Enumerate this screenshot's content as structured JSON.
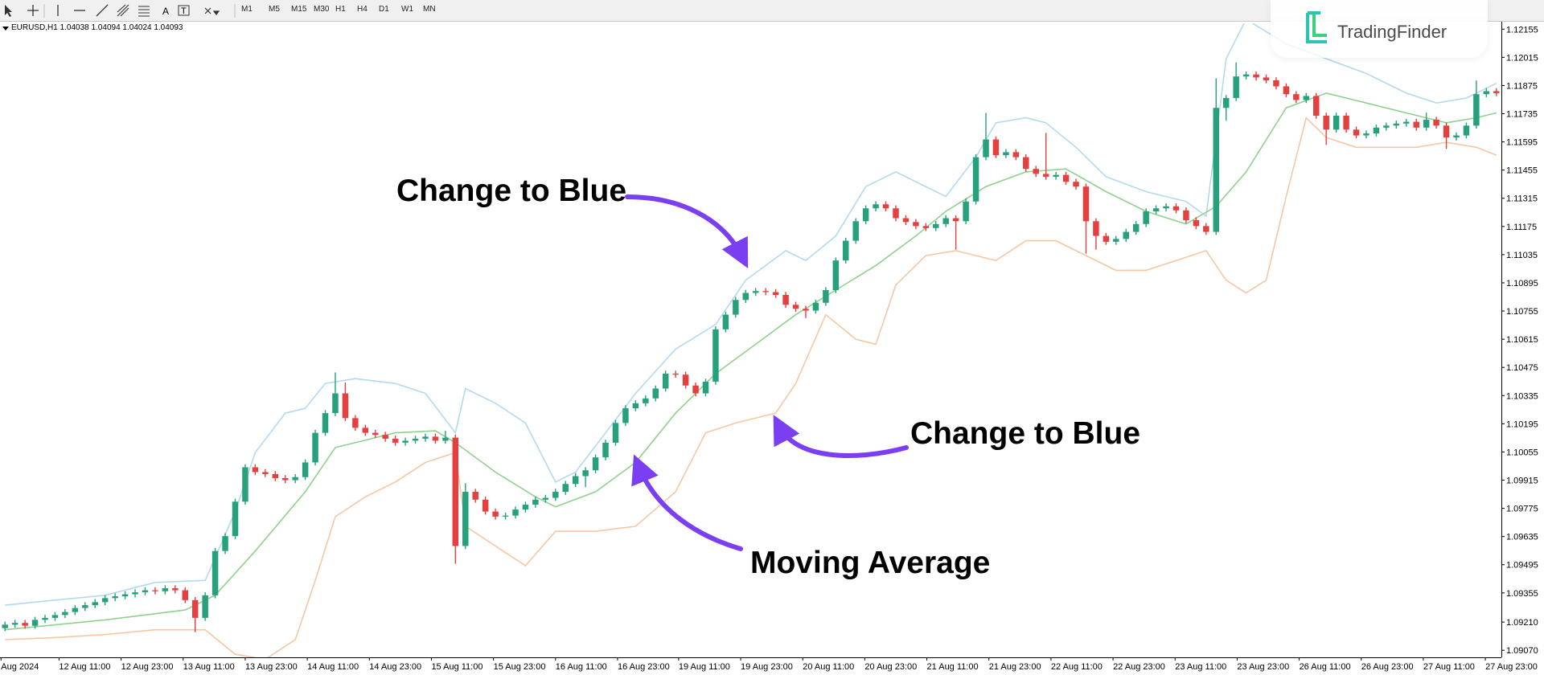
{
  "toolbar": {
    "tools": [
      "A",
      "T"
    ],
    "timeframes": [
      "M1",
      "M5",
      "M15",
      "M30",
      "H1",
      "H4",
      "D1",
      "W1",
      "MN"
    ]
  },
  "logo": "TradingFinder",
  "chart_data": {
    "type": "candlestick",
    "info": "EURUSD,H1  1.04038 1.04094 1.04024 1.04093",
    "up_color": "#26a17b",
    "down_color": "#e5403f",
    "xlim": [
      -0.5,
      149.5
    ],
    "ylim": [
      1.09035,
      1.12184
    ],
    "yticks": [
      1.12155,
      1.12015,
      1.11875,
      1.11735,
      1.11595,
      1.11455,
      1.11315,
      1.11175,
      1.11035,
      1.10895,
      1.10755,
      1.10615,
      1.10475,
      1.10335,
      1.10195,
      1.10055,
      1.09915,
      1.09775,
      1.09635,
      1.09495,
      1.09355,
      {
        "value": 1.0921,
        "label": "1.09210"
      },
      {
        "value": 1.0907,
        "label": "1.09070"
      }
    ],
    "xticks": [
      {
        "value": -0.4,
        "label": "Aug 2024"
      },
      {
        "value": 5.4,
        "label": "12 Aug 11:00"
      },
      {
        "value": 11.6,
        "label": "12 Aug 23:00"
      },
      {
        "value": 17.8,
        "label": "13 Aug 11:00"
      },
      {
        "value": 24.0,
        "label": "13 Aug 23:00"
      },
      {
        "value": 30.2,
        "label": "14 Aug 11:00"
      },
      {
        "value": 36.4,
        "label": "14 Aug 23:00"
      },
      {
        "value": 42.6,
        "label": "15 Aug 11:00"
      },
      {
        "value": 48.8,
        "label": "15 Aug 23:00"
      },
      {
        "value": 55.0,
        "label": "16 Aug 11:00"
      },
      {
        "value": 61.2,
        "label": "16 Aug 23:00"
      },
      {
        "value": 67.3,
        "label": "19 Aug 11:00"
      },
      {
        "value": 73.5,
        "label": "19 Aug 23:00"
      },
      {
        "value": 79.7,
        "label": "20 Aug 11:00"
      },
      {
        "value": 85.9,
        "label": "20 Aug 23:00"
      },
      {
        "value": 92.1,
        "label": "21 Aug 11:00"
      },
      {
        "value": 98.3,
        "label": "21 Aug 23:00"
      },
      {
        "value": 104.5,
        "label": "22 Aug 11:00"
      },
      {
        "value": 110.7,
        "label": "22 Aug 23:00"
      },
      {
        "value": 116.9,
        "label": "23 Aug 11:00"
      },
      {
        "value": 123.1,
        "label": "23 Aug 23:00"
      },
      {
        "value": 129.3,
        "label": "26 Aug 11:00"
      },
      {
        "value": 135.5,
        "label": "26 Aug 23:00"
      },
      {
        "value": 141.7,
        "label": "27 Aug 11:00"
      },
      {
        "value": 147.9,
        "label": "27 Aug 23:00"
      }
    ],
    "candles": {
      "open": [
        1.0918,
        1.09197,
        1.09206,
        1.09192,
        1.09221,
        1.09231,
        1.09245,
        1.0926,
        1.0928,
        1.09294,
        1.09309,
        1.09329,
        1.09338,
        1.09348,
        1.09358,
        1.09368,
        1.09363,
        1.09378,
        1.09368,
        1.09319,
        1.09231,
        1.09343,
        1.09563,
        1.09637,
        1.09808,
        1.09979,
        1.09955,
        1.09945,
        1.09925,
        1.09915,
        1.0993,
        1.10003,
        1.1015,
        1.10248,
        1.10346,
        1.10223,
        1.10175,
        1.1015,
        1.1014,
        1.10121,
        1.10101,
        1.10111,
        1.10121,
        1.10131,
        1.10111,
        1.10126,
        1.09588,
        1.09857,
        1.09818,
        1.09759,
        1.09734,
        1.09739,
        1.09769,
        1.09793,
        1.09818,
        1.09827,
        1.09857,
        1.09896,
        1.09935,
        1.09964,
        1.10028,
        1.10101,
        1.10199,
        1.10272,
        1.10297,
        1.10321,
        1.1037,
        1.10444,
        1.10439,
        1.10385,
        1.10346,
        1.10404,
        1.10664,
        1.10737,
        1.1081,
        1.10845,
        1.10854,
        1.10849,
        1.10835,
        1.10786,
        1.10766,
        1.10757,
        1.10796,
        1.10859,
        1.11006,
        1.11104,
        1.11201,
        1.11265,
        1.11285,
        1.11265,
        1.11216,
        1.11197,
        1.11177,
        1.11167,
        1.11187,
        1.11216,
        1.11201,
        1.11299,
        1.11519,
        1.11607,
        1.11529,
        1.11544,
        1.11519,
        1.11461,
        1.11436,
        1.11422,
        1.11431,
        1.11397,
        1.11373,
        1.11201,
        1.11128,
        1.11099,
        1.11113,
        1.11148,
        1.11187,
        1.1125,
        1.11265,
        1.11275,
        1.11255,
        1.11206,
        1.11177,
        1.11148,
        1.11764,
        1.11813,
        1.1192,
        1.1193,
        1.11915,
        1.11901,
        1.11871,
        1.11832,
        1.11803,
        1.11823,
        1.11725,
        1.11656,
        1.11725,
        1.11656,
        1.11627,
        1.11637,
        1.11666,
        1.11676,
        1.11686,
        1.11695,
        1.11666,
        1.11705,
        1.11676,
        1.11617,
        1.11627,
        1.11676,
        1.11832,
        1.11847
      ],
      "high": [
        1.09212,
        1.09221,
        1.09221,
        1.09236,
        1.09246,
        1.0926,
        1.09275,
        1.09295,
        1.09309,
        1.09324,
        1.09344,
        1.09353,
        1.09363,
        1.09373,
        1.09383,
        1.09383,
        1.09393,
        1.09393,
        1.09383,
        1.09334,
        1.09358,
        1.09578,
        1.09652,
        1.09823,
        1.09994,
        1.09994,
        1.0997,
        1.0996,
        1.0994,
        1.09945,
        1.10018,
        1.10165,
        1.10263,
        1.1045,
        1.104,
        1.10238,
        1.1019,
        1.10165,
        1.10155,
        1.10136,
        1.10126,
        1.10136,
        1.10146,
        1.10146,
        1.1016,
        1.10141,
        1.099,
        1.09872,
        1.09833,
        1.09774,
        1.09754,
        1.09784,
        1.09808,
        1.09833,
        1.09842,
        1.09872,
        1.09911,
        1.0995,
        1.09979,
        1.10043,
        1.10116,
        1.10214,
        1.10287,
        1.10312,
        1.10336,
        1.10385,
        1.10459,
        1.10459,
        1.10454,
        1.104,
        1.10419,
        1.10679,
        1.10752,
        1.10825,
        1.1086,
        1.10869,
        1.10869,
        1.10864,
        1.1085,
        1.10801,
        1.10781,
        1.10811,
        1.10874,
        1.11021,
        1.11119,
        1.11216,
        1.1128,
        1.113,
        1.113,
        1.1128,
        1.11231,
        1.11212,
        1.11192,
        1.11202,
        1.11231,
        1.11231,
        1.11314,
        1.11534,
        1.11739,
        1.11622,
        1.11559,
        1.11559,
        1.11534,
        1.11476,
        1.1164,
        1.11446,
        1.11446,
        1.11412,
        1.11388,
        1.11216,
        1.11143,
        1.11128,
        1.11163,
        1.11202,
        1.11265,
        1.1128,
        1.1129,
        1.1129,
        1.1127,
        1.11221,
        1.11192,
        1.11911,
        1.11828,
        1.1199,
        1.11945,
        1.11945,
        1.1193,
        1.11916,
        1.11886,
        1.11847,
        1.11838,
        1.11838,
        1.1174,
        1.1174,
        1.1174,
        1.11671,
        1.11652,
        1.11681,
        1.11691,
        1.11701,
        1.1171,
        1.1171,
        1.1174,
        1.1172,
        1.11691,
        1.11642,
        1.11691,
        1.119,
        1.11862,
        1.11862
      ],
      "low": [
        1.09165,
        1.09182,
        1.09177,
        1.09177,
        1.09206,
        1.09216,
        1.0923,
        1.09245,
        1.09265,
        1.09279,
        1.09294,
        1.09314,
        1.09323,
        1.09333,
        1.09343,
        1.09348,
        1.09348,
        1.09353,
        1.09304,
        1.0916,
        1.09216,
        1.09328,
        1.09548,
        1.09622,
        1.09793,
        1.0994,
        1.0993,
        1.0991,
        1.099,
        1.099,
        1.09915,
        1.09988,
        1.10135,
        1.10233,
        1.10208,
        1.1016,
        1.10135,
        1.10125,
        1.10106,
        1.10086,
        1.10086,
        1.10096,
        1.10106,
        1.10096,
        1.10096,
        1.095,
        1.09573,
        1.09803,
        1.09744,
        1.09719,
        1.09719,
        1.09724,
        1.09754,
        1.09778,
        1.09803,
        1.09812,
        1.09842,
        1.09881,
        1.0988,
        1.09949,
        1.10013,
        1.10086,
        1.10184,
        1.10257,
        1.10282,
        1.10306,
        1.10355,
        1.10424,
        1.1037,
        1.10331,
        1.10331,
        1.10389,
        1.10649,
        1.10722,
        1.10795,
        1.1083,
        1.10834,
        1.1082,
        1.10771,
        1.10751,
        1.1072,
        1.10742,
        1.10781,
        1.10844,
        1.10991,
        1.11089,
        1.11186,
        1.1125,
        1.1125,
        1.11201,
        1.11182,
        1.11162,
        1.11152,
        1.11152,
        1.11172,
        1.1106,
        1.11186,
        1.11284,
        1.11504,
        1.11514,
        1.11514,
        1.11504,
        1.11446,
        1.11421,
        1.11407,
        1.11407,
        1.11382,
        1.11358,
        1.1104,
        1.1106,
        1.11084,
        1.11084,
        1.11098,
        1.11133,
        1.11172,
        1.11235,
        1.1125,
        1.1124,
        1.11191,
        1.11162,
        1.11133,
        1.11133,
        1.117,
        1.11798,
        1.11905,
        1.119,
        1.11886,
        1.11856,
        1.11817,
        1.11788,
        1.11788,
        1.1171,
        1.1158,
        1.11641,
        1.11641,
        1.11612,
        1.11612,
        1.11622,
        1.11651,
        1.11661,
        1.11671,
        1.11651,
        1.11651,
        1.11661,
        1.1156,
        1.11602,
        1.11612,
        1.11661,
        1.11817,
        1.11822
      ],
      "close": [
        1.09197,
        1.09206,
        1.09192,
        1.09221,
        1.09231,
        1.09245,
        1.0926,
        1.0928,
        1.09294,
        1.09309,
        1.09329,
        1.09338,
        1.09348,
        1.09358,
        1.09368,
        1.09363,
        1.09378,
        1.09368,
        1.09319,
        1.09231,
        1.09343,
        1.09563,
        1.09637,
        1.09808,
        1.09979,
        1.09955,
        1.09945,
        1.09925,
        1.09915,
        1.0993,
        1.10003,
        1.1015,
        1.10248,
        1.10346,
        1.10223,
        1.10175,
        1.1015,
        1.1014,
        1.10121,
        1.10101,
        1.10111,
        1.10121,
        1.10131,
        1.10111,
        1.10126,
        1.09588,
        1.09857,
        1.09818,
        1.09759,
        1.09734,
        1.09739,
        1.09769,
        1.09793,
        1.09818,
        1.09827,
        1.09857,
        1.09896,
        1.09935,
        1.09964,
        1.10028,
        1.10101,
        1.10199,
        1.10272,
        1.10297,
        1.10321,
        1.1037,
        1.10444,
        1.10439,
        1.10385,
        1.10346,
        1.10404,
        1.10664,
        1.10737,
        1.1081,
        1.10845,
        1.10854,
        1.10849,
        1.10835,
        1.10786,
        1.10766,
        1.10757,
        1.10796,
        1.10859,
        1.11006,
        1.11104,
        1.11201,
        1.11265,
        1.11285,
        1.11265,
        1.11216,
        1.11197,
        1.11177,
        1.11167,
        1.11187,
        1.11216,
        1.11201,
        1.11299,
        1.11519,
        1.11607,
        1.11529,
        1.11544,
        1.11519,
        1.11461,
        1.11436,
        1.11422,
        1.11431,
        1.11397,
        1.11373,
        1.11201,
        1.11128,
        1.11099,
        1.11113,
        1.11148,
        1.11187,
        1.1125,
        1.11265,
        1.11275,
        1.11255,
        1.11206,
        1.11177,
        1.11148,
        1.11764,
        1.11813,
        1.1192,
        1.1193,
        1.11915,
        1.11901,
        1.11871,
        1.11832,
        1.11803,
        1.11823,
        1.11725,
        1.11656,
        1.11725,
        1.11656,
        1.11627,
        1.11637,
        1.11666,
        1.11676,
        1.11686,
        1.11695,
        1.11666,
        1.11705,
        1.11676,
        1.11617,
        1.11627,
        1.11676,
        1.11832,
        1.11847,
        1.11837
      ]
    },
    "overlays": [
      {
        "color": "#b3d9f2",
        "x": [
          0,
          5,
          10,
          15,
          20,
          23,
          25,
          28,
          30,
          32,
          35,
          39,
          42,
          45,
          46,
          49,
          52,
          55,
          57,
          60,
          63,
          67,
          71,
          74,
          78,
          80,
          83,
          86,
          89,
          91,
          94,
          97,
          99,
          102,
          104,
          107,
          110,
          114,
          118,
          120,
          122,
          124,
          128,
          132,
          136,
          140,
          143,
          146,
          149
        ],
        "values": [
          1.09294,
          1.09319,
          1.09343,
          1.09407,
          1.09417,
          1.09759,
          1.10052,
          1.10248,
          1.10272,
          1.10395,
          1.10419,
          1.10395,
          1.10346,
          1.1015,
          1.1037,
          1.10297,
          1.10199,
          1.09906,
          1.09955,
          1.1015,
          1.10346,
          1.10566,
          1.10688,
          1.10908,
          1.11055,
          1.11006,
          1.11128,
          1.11373,
          1.11446,
          1.11397,
          1.11324,
          1.11519,
          1.1169,
          1.11715,
          1.1169,
          1.11568,
          1.11422,
          1.11348,
          1.11299,
          1.11226,
          1.12008,
          1.12204,
          1.12082,
          1.12008,
          1.11935,
          1.11837,
          1.11788,
          1.11813,
          1.11886
        ]
      },
      {
        "color": "#f7c6a3",
        "x": [
          0,
          5,
          10,
          15,
          20,
          23,
          26,
          29,
          31,
          33,
          36,
          39,
          42,
          45,
          46,
          49,
          52,
          55,
          59,
          63,
          67,
          70,
          73,
          77,
          79,
          82,
          85,
          87,
          89,
          92,
          95,
          97,
          99,
          102,
          105,
          108,
          111,
          114,
          117,
          120,
          122,
          124,
          126,
          128,
          130,
          132,
          135,
          138,
          141,
          144,
          147,
          149
        ],
        "values": [
          1.09123,
          1.09133,
          1.09148,
          1.09172,
          1.09172,
          1.0905,
          1.09025,
          1.09123,
          1.09417,
          1.09734,
          1.09832,
          1.09906,
          1.10003,
          1.10052,
          1.09686,
          1.09588,
          1.0949,
          1.09661,
          1.09661,
          1.09686,
          1.09857,
          1.1015,
          1.10199,
          1.10248,
          1.10395,
          1.10737,
          1.10615,
          1.1059,
          1.10884,
          1.1103,
          1.11055,
          1.1103,
          1.11006,
          1.11104,
          1.11104,
          1.1103,
          1.10957,
          1.10957,
          1.11006,
          1.11055,
          1.10908,
          1.10845,
          1.10908,
          1.11324,
          1.11715,
          1.11617,
          1.11568,
          1.11568,
          1.11568,
          1.11593,
          1.11568,
          1.11529
        ]
      },
      {
        "color": "#8fd18f",
        "x": [
          0,
          10,
          18,
          21,
          25,
          30,
          33,
          39,
          43,
          45,
          49,
          53,
          55,
          59,
          63,
          67,
          71,
          75,
          79,
          83,
          87,
          91,
          94,
          98,
          102,
          106,
          110,
          114,
          118,
          121,
          124,
          128,
          132,
          136,
          140,
          144,
          147,
          149
        ],
        "values": [
          1.09172,
          1.09221,
          1.0927,
          1.09343,
          1.09563,
          1.09857,
          1.10077,
          1.1015,
          1.1016,
          1.10101,
          1.09955,
          1.09832,
          1.09783,
          1.09857,
          1.10003,
          1.10248,
          1.10444,
          1.1059,
          1.10737,
          1.10859,
          1.10981,
          1.11128,
          1.1125,
          1.11373,
          1.11446,
          1.11461,
          1.11348,
          1.1125,
          1.11187,
          1.11275,
          1.11446,
          1.11764,
          1.11837,
          1.11788,
          1.11739,
          1.1169,
          1.11715,
          1.11739
        ]
      }
    ],
    "annotations": [
      {
        "text": "Change to Blue"
      },
      {
        "text": "Change to Blue"
      },
      {
        "text": "Moving Average"
      }
    ]
  }
}
